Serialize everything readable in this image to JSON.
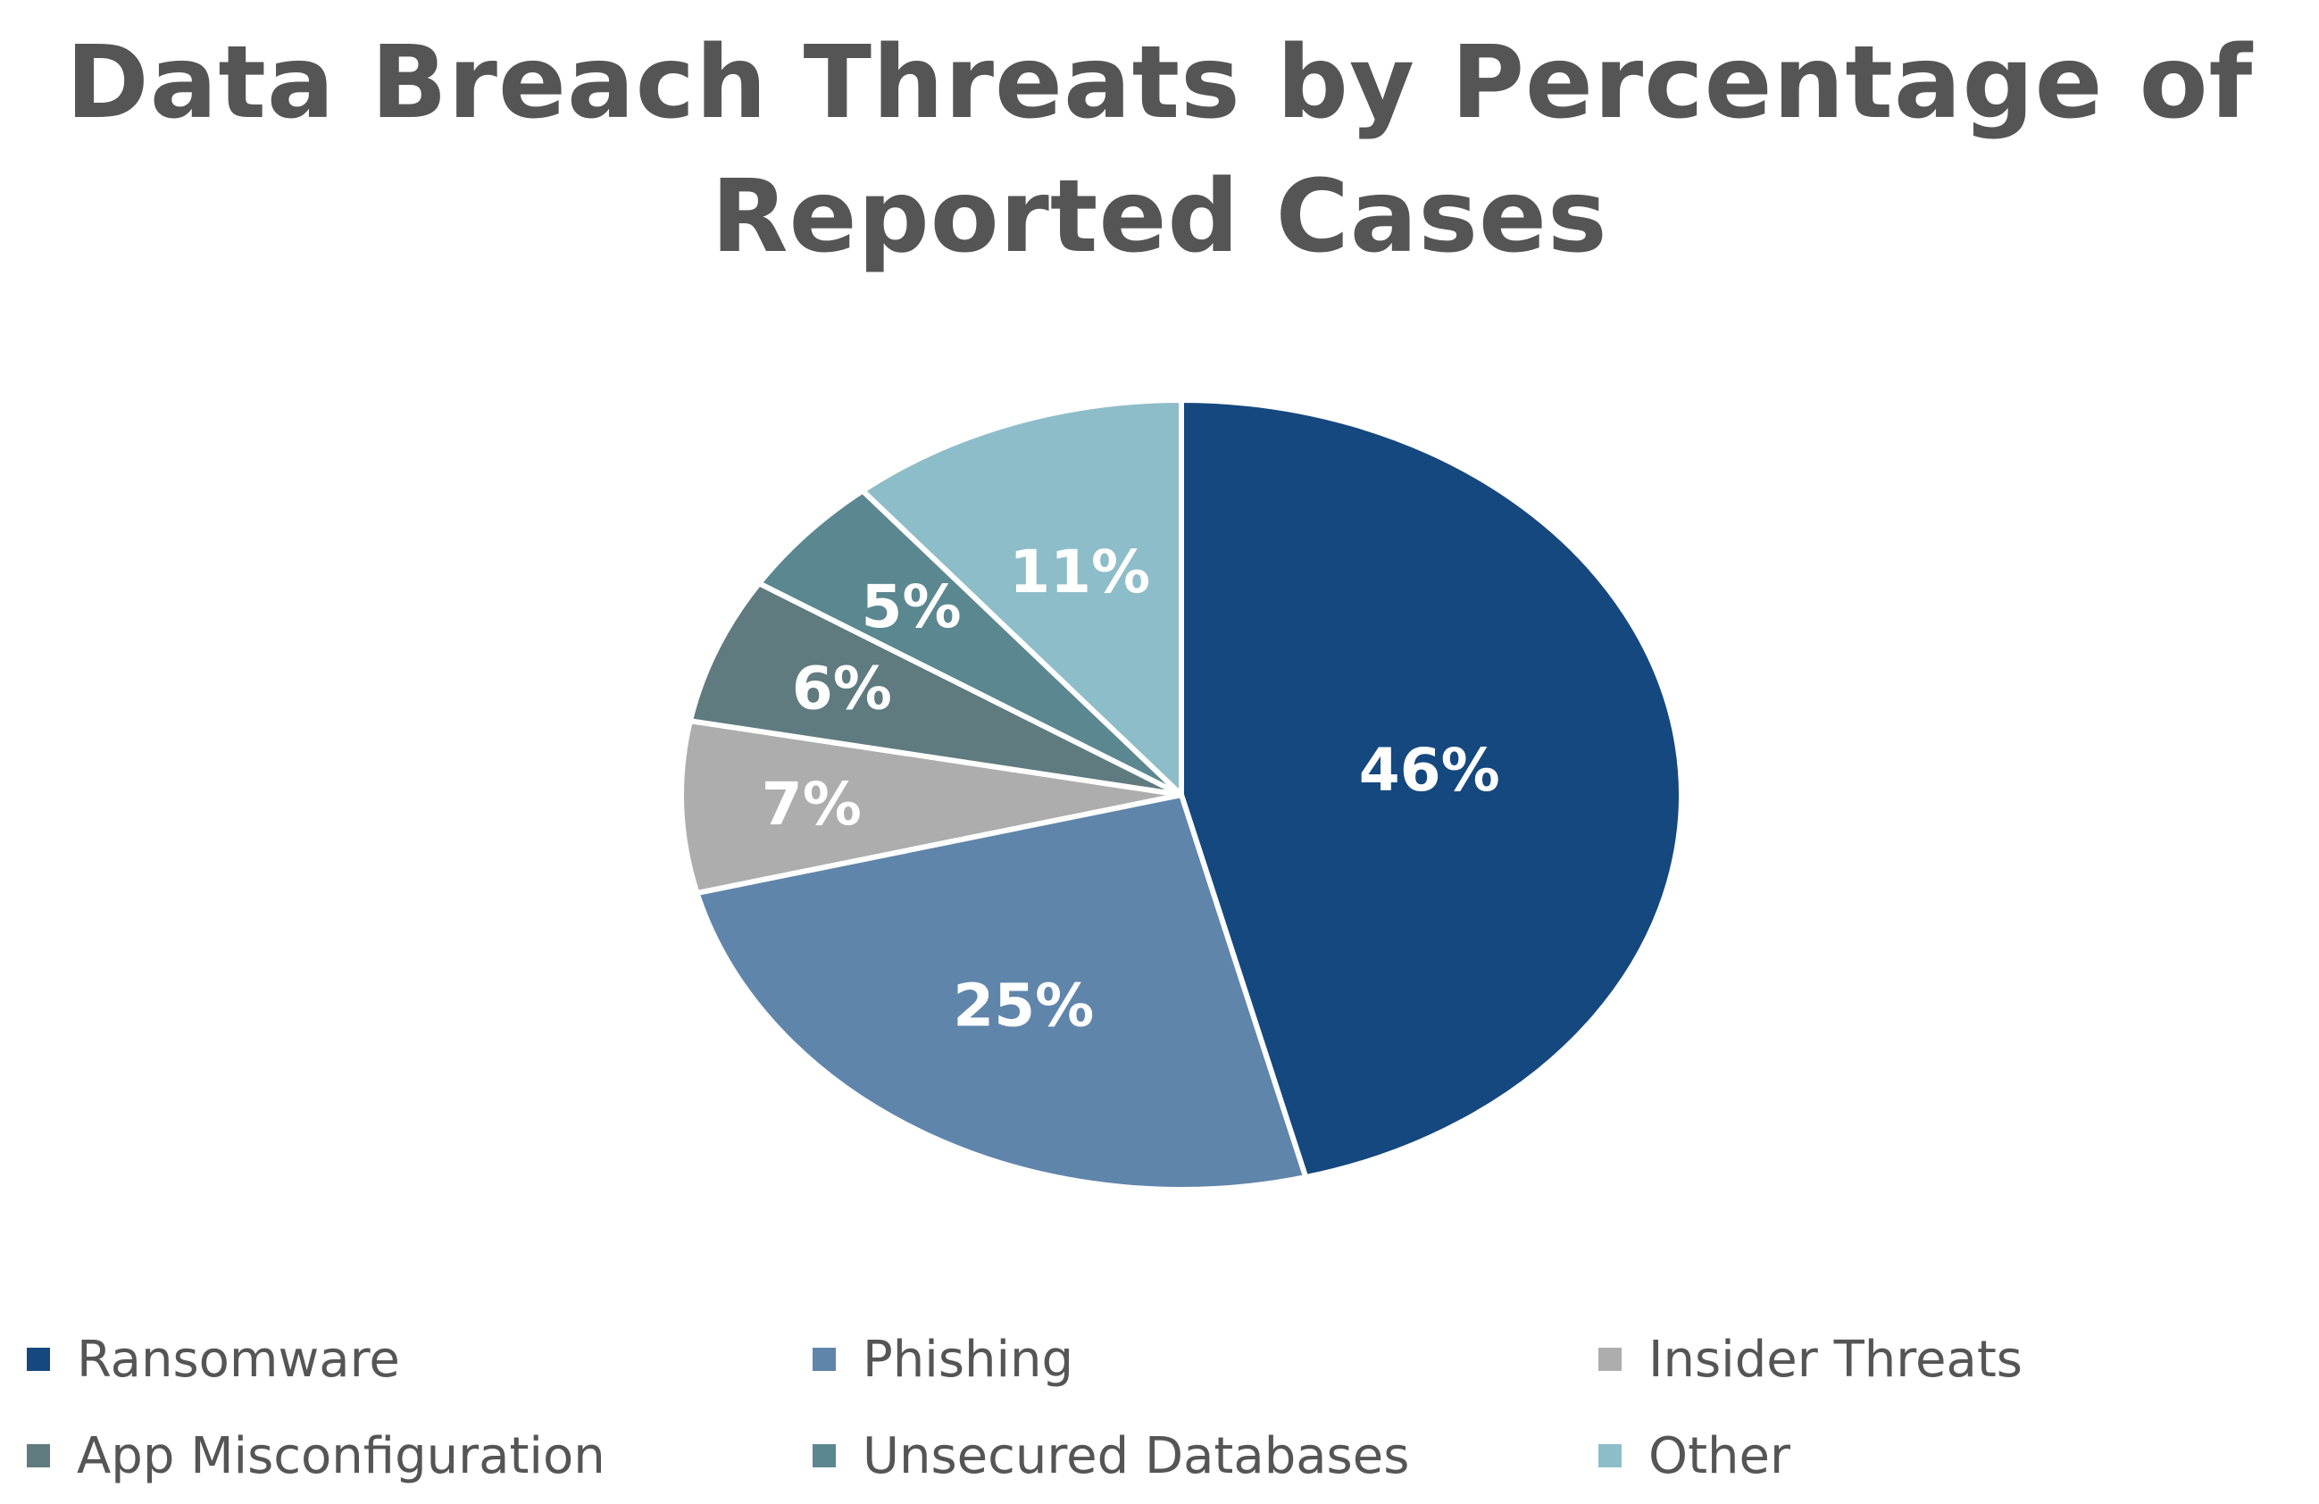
{
  "chart_data": {
    "type": "pie",
    "title_lines": [
      "Data Breach Threats by Percentage of",
      "Reported Cases"
    ],
    "categories": [
      "Ransomware",
      "Phishing",
      "Insider Threats",
      "App Misconfiguration",
      "Unsecured Databases",
      "Other"
    ],
    "values": [
      46,
      25,
      7,
      6,
      5,
      11
    ],
    "labels": [
      "46%",
      "25%",
      "7%",
      "6%",
      "5%",
      "11%"
    ],
    "colors": [
      "#15487f",
      "#5f85ab",
      "#adadad",
      "#5f7b7f",
      "#5b8790",
      "#8dbdc8"
    ],
    "legend_position": "bottom",
    "start_angle": "12 o'clock",
    "direction": "clockwise"
  }
}
